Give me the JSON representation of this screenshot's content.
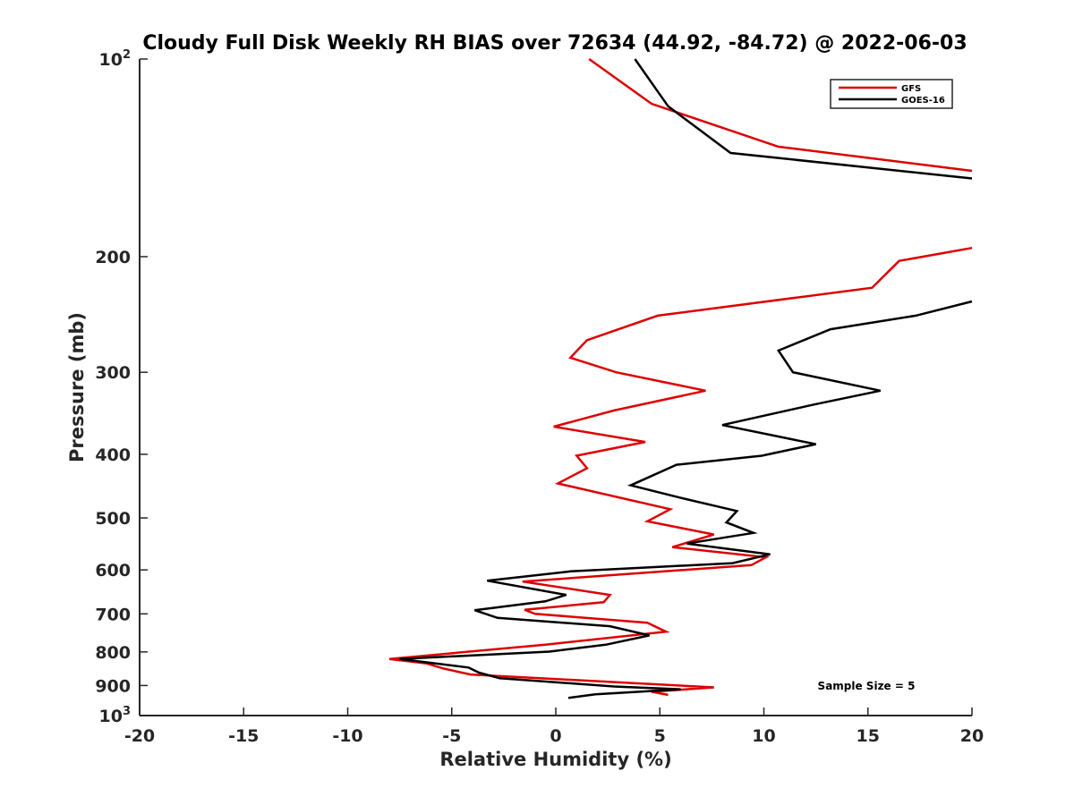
{
  "chart_data": {
    "type": "line",
    "title": "Cloudy Full Disk Weekly RH BIAS over 72634 (44.92, -84.72) @ 2022-06-03",
    "xlabel": "Relative Humidity (%)",
    "ylabel": "Pressure (mb)",
    "xlim": [
      -20,
      20
    ],
    "ylim": [
      100,
      1000
    ],
    "yscale": "log",
    "y_reversed": true,
    "grid": false,
    "legend_position": "top-right",
    "x_ticks": [
      -20,
      -15,
      -10,
      -5,
      0,
      5,
      10,
      15,
      20
    ],
    "y_ticks": [
      {
        "value": 100,
        "label": "10",
        "sup": "2"
      },
      {
        "value": 200,
        "label": "200"
      },
      {
        "value": 300,
        "label": "300"
      },
      {
        "value": 400,
        "label": "400"
      },
      {
        "value": 500,
        "label": "500"
      },
      {
        "value": 600,
        "label": "600"
      },
      {
        "value": 700,
        "label": "700"
      },
      {
        "value": 800,
        "label": "800"
      },
      {
        "value": 900,
        "label": "900"
      },
      {
        "value": 1000,
        "label": "10",
        "sup": "3"
      }
    ],
    "annotation": "Sample Size = 5",
    "series": [
      {
        "name": "GFS",
        "color": "#dd0000",
        "points": [
          [
            1.6,
            100
          ],
          [
            4.6,
            117
          ],
          [
            10.7,
            136
          ],
          [
            20,
            148
          ],
          null,
          [
            20,
            194
          ],
          [
            16.5,
            203
          ],
          [
            15.2,
            223
          ],
          [
            4.9,
            246
          ],
          [
            1.5,
            268
          ],
          [
            0.7,
            285
          ],
          [
            2.9,
            300
          ],
          [
            7.2,
            320
          ],
          [
            2.8,
            343
          ],
          [
            -0.1,
            363
          ],
          [
            4.3,
            383
          ],
          [
            1.0,
            402
          ],
          [
            1.5,
            420
          ],
          [
            0.1,
            443
          ],
          [
            5.5,
            485
          ],
          [
            4.4,
            506
          ],
          [
            7.6,
            530
          ],
          [
            5.6,
            554
          ],
          [
            10.1,
            574
          ],
          [
            9.4,
            590
          ],
          [
            -1.6,
            625
          ],
          [
            2.6,
            655
          ],
          [
            2.3,
            672
          ],
          [
            -1.5,
            690
          ],
          [
            -1.0,
            700
          ],
          [
            4.4,
            722
          ],
          [
            5.3,
            745
          ],
          [
            -0.5,
            780
          ],
          [
            -8.0,
            820
          ],
          [
            -6.2,
            833
          ],
          [
            -5.4,
            848
          ],
          [
            -4.1,
            866
          ],
          [
            7.6,
            906
          ],
          [
            4.6,
            920
          ],
          [
            5.4,
            930
          ]
        ]
      },
      {
        "name": "GOES-16",
        "color": "#000000",
        "points": [
          [
            3.8,
            100
          ],
          [
            5.4,
            118
          ],
          [
            8.4,
            139
          ],
          [
            20,
            152
          ],
          null,
          [
            20,
            234
          ],
          [
            17.3,
            246
          ],
          [
            13.2,
            258
          ],
          [
            10.7,
            278
          ],
          [
            11.4,
            300
          ],
          [
            15.6,
            320
          ],
          [
            12.4,
            336
          ],
          [
            8.0,
            361
          ],
          [
            12.5,
            386
          ],
          [
            9.9,
            402
          ],
          [
            5.8,
            415
          ],
          [
            3.6,
            446
          ],
          [
            6.0,
            466
          ],
          [
            8.7,
            488
          ],
          [
            8.2,
            508
          ],
          [
            9.5,
            527
          ],
          [
            6.3,
            547
          ],
          [
            10.3,
            568
          ],
          [
            8.5,
            586
          ],
          [
            0.7,
            603
          ],
          [
            -3.3,
            623
          ],
          [
            0.5,
            655
          ],
          [
            -0.5,
            670
          ],
          [
            -3.9,
            691
          ],
          [
            -2.8,
            710
          ],
          [
            2.6,
            731
          ],
          [
            4.5,
            755
          ],
          [
            2.4,
            780
          ],
          [
            -0.3,
            799
          ],
          [
            -7.5,
            820
          ],
          [
            -4.2,
            845
          ],
          [
            -3.7,
            860
          ],
          [
            -2.7,
            877
          ],
          [
            2.8,
            903
          ],
          [
            6.0,
            912
          ],
          [
            1.9,
            928
          ],
          [
            0.6,
            940
          ]
        ]
      }
    ]
  }
}
